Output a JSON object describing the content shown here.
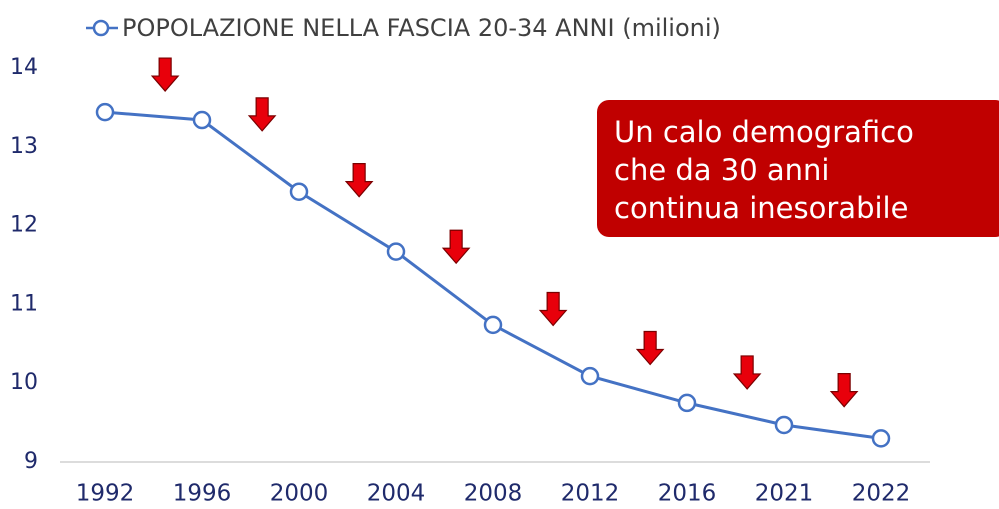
{
  "chart_data": {
    "type": "line",
    "categories": [
      "1992",
      "1996",
      "2000",
      "2004",
      "2008",
      "2012",
      "2016",
      "2021",
      "2022"
    ],
    "series": [
      {
        "name": "POPOLAZIONE NELLA FASCIA 20-34 ANNI (milioni)",
        "color": "#4472c4",
        "values": [
          13.44,
          13.34,
          12.43,
          11.67,
          10.74,
          10.09,
          9.75,
          9.47,
          9.3
        ]
      }
    ],
    "ylim": [
      9,
      14
    ],
    "yticks": [
      9,
      10,
      11,
      12,
      13,
      14
    ],
    "annotation": [
      "Un calo demografico",
      "che da 30 anni",
      "continua inesorabile"
    ],
    "legend": "top-left"
  }
}
